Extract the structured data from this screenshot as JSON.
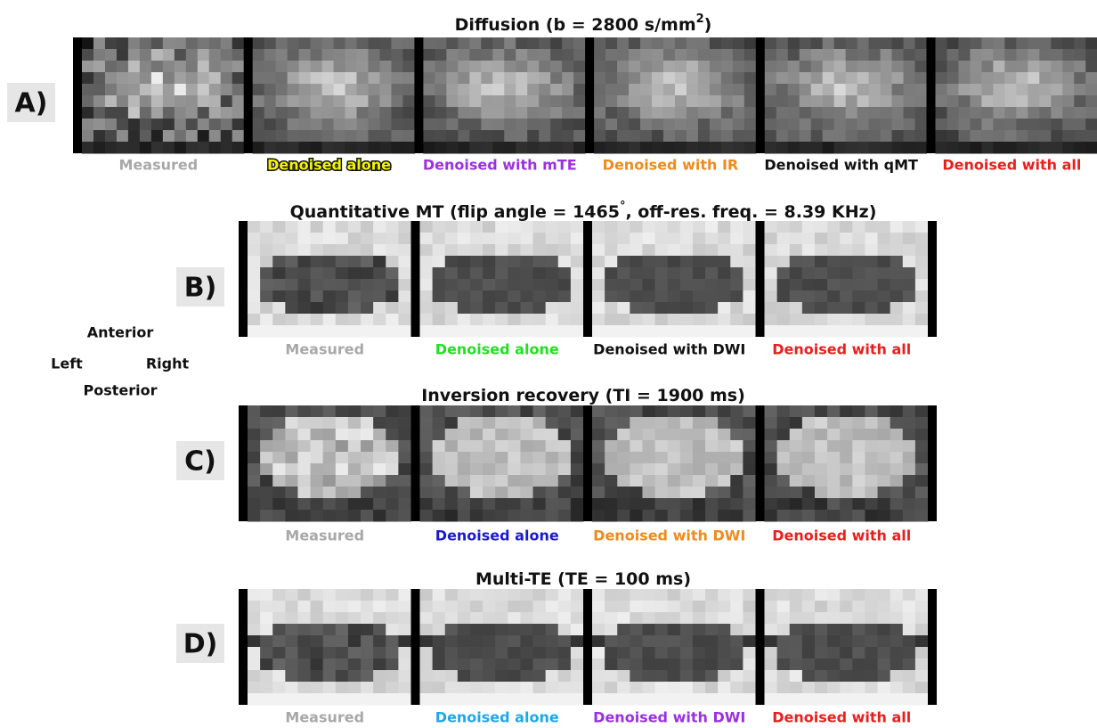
{
  "orientation": {
    "anterior": "Anterior",
    "left": "Left",
    "right": "Right",
    "posterior": "Posterior"
  },
  "panels": [
    {
      "label": "A)",
      "title": [
        "Diffusion (b = 2800 s/mm",
        "2",
        ")"
      ],
      "captions": [
        {
          "text": "Measured",
          "color": "#a8a8a8"
        },
        {
          "text": "Denoised alone",
          "color": "#f5f500",
          "highlight": true
        },
        {
          "text": "Denoised with mTE",
          "color": "#9b30e0"
        },
        {
          "text": "Denoised with IR",
          "color": "#f08a1c"
        },
        {
          "text": "Denoised with qMT",
          "color": "#111111"
        },
        {
          "text": "Denoised with all",
          "color": "#e8201c"
        }
      ]
    },
    {
      "label": "B)",
      "title": [
        "Quantitative MT (flip angle = 1465",
        "°",
        ",  off-res. freq. = 8.39 KHz)"
      ],
      "captions": [
        {
          "text": "Measured",
          "color": "#a8a8a8"
        },
        {
          "text": "Denoised alone",
          "color": "#22e022"
        },
        {
          "text": "Denoised with DWI",
          "color": "#111111"
        },
        {
          "text": "Denoised with all",
          "color": "#e8201c"
        }
      ]
    },
    {
      "label": "C)",
      "title": [
        "Inversion recovery (TI = 1900 ms)"
      ],
      "captions": [
        {
          "text": "Measured",
          "color": "#a8a8a8"
        },
        {
          "text": "Denoised alone",
          "color": "#1a1ad0"
        },
        {
          "text": "Denoised with DWI",
          "color": "#f08a1c"
        },
        {
          "text": "Denoised with all",
          "color": "#e8201c"
        }
      ]
    },
    {
      "label": "D)",
      "title": [
        "Multi-TE (TE = 100 ms)"
      ],
      "captions": [
        {
          "text": "Measured",
          "color": "#a8a8a8"
        },
        {
          "text": "Denoised alone",
          "color": "#1ea8e8"
        },
        {
          "text": "Denoised with DWI",
          "color": "#9b30e0"
        },
        {
          "text": "Denoised with all",
          "color": "#e8201c"
        }
      ]
    }
  ]
}
